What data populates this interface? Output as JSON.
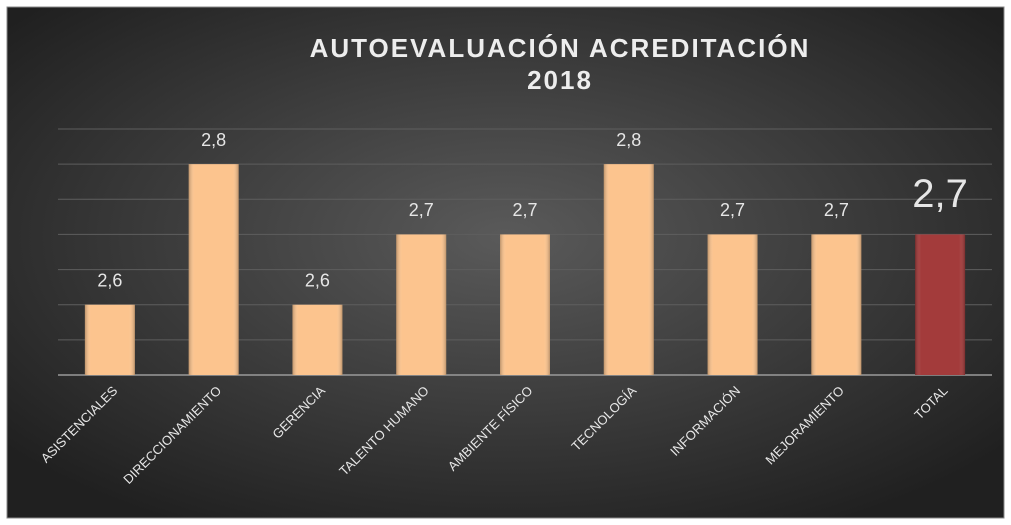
{
  "chart_data": {
    "type": "bar",
    "title": [
      "AUTOEVALUACIÓN ACREDITACIÓN",
      "2018"
    ],
    "categories": [
      "ASISTENCIALES",
      "DIRECCIONAMIENTO",
      "GERENCIA",
      "TALENTO HUMANO",
      "AMBIENTE FÍSICO",
      "TECNOLOGÍA",
      "INFORMACIÓN",
      "MEJORAMIENTO",
      "TOTAL"
    ],
    "values": [
      2.6,
      2.8,
      2.6,
      2.7,
      2.7,
      2.8,
      2.7,
      2.7,
      2.7
    ],
    "value_labels": [
      "2,6",
      "2,8",
      "2,6",
      "2,7",
      "2,7",
      "2,8",
      "2,7",
      "2,7",
      "2,7"
    ],
    "colors": [
      "#fcc48e",
      "#fcc48e",
      "#fcc48e",
      "#fcc48e",
      "#fcc48e",
      "#fcc48e",
      "#fcc48e",
      "#fcc48e",
      "#a33b3b"
    ],
    "ylim": [
      2.5,
      2.85
    ],
    "yticks": [
      2.5,
      2.55,
      2.6,
      2.65,
      2.7,
      2.75,
      2.8,
      2.85
    ],
    "grid": true
  }
}
